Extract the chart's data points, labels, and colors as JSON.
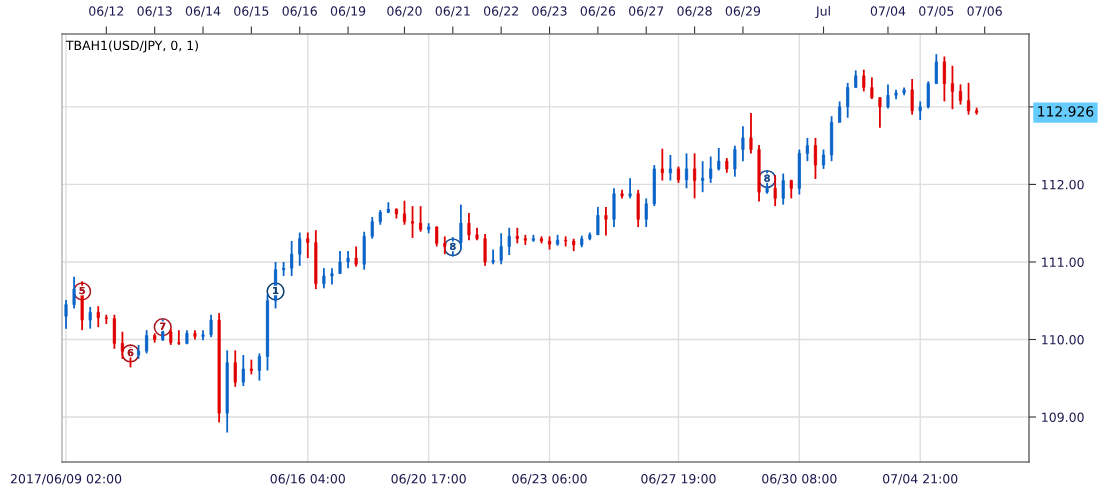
{
  "chart_data": [
    {
      "type": "other",
      "categories": [
        null,
        null,
        null,
        null,
        null,
        "06/12",
        null,
        null,
        null,
        null,
        null,
        "06/13",
        null,
        null,
        null,
        null,
        null,
        "06/14",
        null,
        null,
        null,
        null,
        null,
        "06/15",
        null,
        null,
        null,
        null,
        null,
        "06/16",
        null,
        null,
        null,
        null,
        null,
        "06/19",
        null,
        null,
        null,
        null,
        null,
        null,
        "06/20",
        null,
        null,
        null,
        null,
        null,
        "06/21",
        null,
        null,
        null,
        null,
        null,
        "06/22",
        null,
        null,
        null,
        null,
        null,
        "06/23",
        null,
        null,
        null,
        null,
        null,
        "06/26",
        null,
        null,
        null,
        null,
        null,
        "06/27",
        null,
        null,
        null,
        null,
        null,
        "06/28",
        null,
        null,
        null,
        null,
        null,
        "06/29",
        null,
        null,
        null,
        null,
        null,
        null,
        null,
        null,
        null,
        "Jul",
        null,
        null,
        null,
        null,
        null,
        null,
        null,
        "07/04",
        null,
        null,
        null,
        null,
        null,
        "07/05",
        null,
        null,
        null,
        null,
        null,
        "07/06",
        null,
        null,
        null,
        null,
        null
      ]
    },
    {
      "type": "candlestick",
      "title": "TBAH1(USD/JPY, 0, 1)",
      "categories": [
        "2017/06/09 02:00",
        null,
        null,
        null,
        null,
        null,
        null,
        null,
        null,
        null,
        null,
        null,
        null,
        null,
        null,
        null,
        null,
        null,
        null,
        null,
        null,
        null,
        null,
        null,
        null,
        null,
        null,
        null,
        null,
        null,
        "06/16 04:00",
        null,
        null,
        null,
        null,
        null,
        null,
        null,
        null,
        null,
        null,
        null,
        null,
        null,
        null,
        "06/20 17:00",
        null,
        null,
        null,
        null,
        null,
        null,
        null,
        null,
        null,
        null,
        null,
        null,
        null,
        null,
        "06/23 06:00",
        null,
        null,
        null,
        null,
        null,
        null,
        null,
        null,
        null,
        null,
        null,
        null,
        null,
        null,
        null,
        "06/27 19:00",
        null,
        null,
        null,
        null,
        null,
        null,
        null,
        null,
        null,
        null,
        null,
        null,
        null,
        null,
        "06/30 08:00",
        null,
        null,
        null,
        null,
        null,
        null,
        null,
        null,
        null,
        null,
        null,
        null,
        null,
        null,
        "07/04 21:00",
        null,
        null,
        null,
        null,
        null,
        null,
        null,
        null,
        null,
        null,
        null,
        null,
        null
      ],
      "ohlc": [
        [
          110.3,
          110.51,
          110.14,
          110.45
        ],
        [
          110.45,
          110.81,
          110.4,
          110.65
        ],
        [
          110.65,
          110.75,
          110.12,
          110.25
        ],
        [
          110.25,
          110.42,
          110.14,
          110.35
        ],
        [
          110.35,
          110.43,
          110.16,
          110.28
        ],
        [
          110.28,
          110.32,
          110.2,
          110.27
        ],
        [
          110.27,
          110.32,
          109.88,
          109.95
        ],
        [
          109.95,
          110.1,
          109.75,
          109.85
        ],
        [
          109.85,
          109.9,
          109.64,
          109.8
        ],
        [
          109.8,
          109.93,
          109.75,
          109.85
        ],
        [
          109.85,
          110.12,
          109.82,
          110.05
        ],
        [
          110.05,
          110.08,
          109.96,
          110.0
        ],
        [
          110.0,
          110.26,
          109.98,
          110.1
        ],
        [
          110.1,
          110.14,
          109.93,
          109.96
        ],
        [
          109.96,
          110.12,
          109.93,
          109.95
        ],
        [
          109.95,
          110.12,
          109.94,
          110.08
        ],
        [
          110.08,
          110.12,
          110.0,
          110.04
        ],
        [
          110.04,
          110.12,
          109.99,
          110.06
        ],
        [
          110.06,
          110.32,
          110.03,
          110.25
        ],
        [
          110.25,
          110.34,
          108.93,
          109.05
        ],
        [
          109.05,
          109.86,
          108.8,
          109.7
        ],
        [
          109.7,
          109.86,
          109.39,
          109.45
        ],
        [
          109.45,
          109.8,
          109.4,
          109.62
        ],
        [
          109.62,
          109.74,
          109.55,
          109.6
        ],
        [
          109.6,
          109.82,
          109.47,
          109.78
        ],
        [
          109.78,
          110.58,
          109.6,
          110.5
        ],
        [
          110.5,
          111.0,
          110.4,
          110.9
        ],
        [
          110.9,
          111.0,
          110.82,
          110.92
        ],
        [
          110.92,
          111.27,
          110.82,
          111.1
        ],
        [
          111.1,
          111.38,
          110.95,
          111.3
        ],
        [
          111.3,
          111.38,
          111.05,
          111.25
        ],
        [
          111.25,
          111.41,
          110.65,
          110.72
        ],
        [
          110.72,
          110.92,
          110.66,
          110.82
        ],
        [
          110.82,
          110.92,
          110.71,
          110.85
        ],
        [
          110.85,
          111.14,
          110.85,
          111.0
        ],
        [
          111.0,
          111.14,
          110.92,
          111.05
        ],
        [
          111.05,
          111.2,
          110.94,
          110.97
        ],
        [
          110.97,
          111.39,
          110.9,
          111.33
        ],
        [
          111.33,
          111.58,
          111.3,
          111.52
        ],
        [
          111.52,
          111.67,
          111.48,
          111.64
        ],
        [
          111.64,
          111.77,
          111.63,
          111.68
        ],
        [
          111.68,
          111.69,
          111.56,
          111.62
        ],
        [
          111.62,
          111.79,
          111.48,
          111.52
        ],
        [
          111.52,
          111.72,
          111.31,
          111.5
        ],
        [
          111.5,
          111.72,
          111.39,
          111.42
        ],
        [
          111.42,
          111.5,
          111.37,
          111.45
        ],
        [
          111.45,
          111.46,
          111.2,
          111.24
        ],
        [
          111.24,
          111.33,
          111.1,
          111.2
        ],
        [
          111.2,
          111.32,
          111.07,
          111.25
        ],
        [
          111.25,
          111.74,
          111.16,
          111.5
        ],
        [
          111.5,
          111.63,
          111.28,
          111.35
        ],
        [
          111.35,
          111.44,
          111.28,
          111.3
        ],
        [
          111.3,
          111.36,
          110.95,
          111.0
        ],
        [
          111.0,
          111.16,
          110.97,
          111.02
        ],
        [
          111.02,
          111.37,
          110.97,
          111.2
        ],
        [
          111.2,
          111.44,
          111.09,
          111.33
        ],
        [
          111.33,
          111.44,
          111.24,
          111.3
        ],
        [
          111.3,
          111.35,
          111.22,
          111.28
        ],
        [
          111.28,
          111.35,
          111.26,
          111.3
        ],
        [
          111.3,
          111.33,
          111.24,
          111.27
        ],
        [
          111.27,
          111.33,
          111.16,
          111.23
        ],
        [
          111.23,
          111.35,
          111.21,
          111.28
        ],
        [
          111.28,
          111.33,
          111.2,
          111.27
        ],
        [
          111.27,
          111.3,
          111.14,
          111.22
        ],
        [
          111.22,
          111.34,
          111.19,
          111.3
        ],
        [
          111.3,
          111.38,
          111.28,
          111.35
        ],
        [
          111.35,
          111.71,
          111.35,
          111.6
        ],
        [
          111.6,
          111.71,
          111.34,
          111.55
        ],
        [
          111.55,
          111.95,
          111.45,
          111.88
        ],
        [
          111.88,
          111.93,
          111.82,
          111.85
        ],
        [
          111.85,
          112.08,
          111.82,
          111.88
        ],
        [
          111.88,
          111.93,
          111.45,
          111.55
        ],
        [
          111.55,
          111.82,
          111.45,
          111.75
        ],
        [
          111.75,
          112.25,
          111.72,
          112.2
        ],
        [
          112.2,
          112.46,
          112.05,
          112.15
        ],
        [
          112.15,
          112.38,
          112.05,
          112.2
        ],
        [
          112.2,
          112.23,
          112.02,
          112.06
        ],
        [
          112.06,
          112.4,
          111.95,
          112.2
        ],
        [
          112.2,
          112.4,
          111.82,
          112.05
        ],
        [
          112.05,
          112.3,
          111.9,
          112.08
        ],
        [
          112.08,
          112.36,
          112.02,
          112.2
        ],
        [
          112.2,
          112.47,
          112.18,
          112.3
        ],
        [
          112.3,
          112.34,
          112.15,
          112.2
        ],
        [
          112.2,
          112.5,
          112.1,
          112.45
        ],
        [
          112.45,
          112.75,
          112.3,
          112.6
        ],
        [
          112.6,
          112.92,
          112.4,
          112.45
        ],
        [
          112.45,
          112.51,
          111.78,
          111.9
        ],
        [
          111.9,
          112.17,
          111.88,
          111.95
        ],
        [
          111.95,
          112.12,
          111.72,
          111.82
        ],
        [
          111.82,
          112.14,
          111.74,
          112.05
        ],
        [
          112.05,
          112.06,
          111.82,
          111.95
        ],
        [
          111.95,
          112.45,
          111.87,
          112.4
        ],
        [
          112.4,
          112.6,
          112.3,
          112.5
        ],
        [
          112.5,
          112.6,
          112.07,
          112.25
        ],
        [
          112.25,
          112.45,
          112.2,
          112.38
        ],
        [
          112.38,
          112.88,
          112.3,
          112.8
        ],
        [
          112.8,
          113.07,
          112.8,
          113.0
        ],
        [
          113.0,
          113.31,
          112.86,
          113.25
        ],
        [
          113.25,
          113.47,
          113.25,
          113.4
        ],
        [
          113.4,
          113.48,
          113.2,
          113.25
        ],
        [
          113.25,
          113.38,
          113.1,
          113.12
        ],
        [
          113.12,
          113.12,
          112.73,
          113.0
        ],
        [
          113.0,
          113.29,
          112.98,
          113.15
        ],
        [
          113.15,
          113.22,
          113.1,
          113.18
        ],
        [
          113.18,
          113.25,
          113.15,
          113.22
        ],
        [
          113.22,
          113.36,
          112.9,
          112.95
        ],
        [
          112.95,
          113.07,
          112.83,
          113.0
        ],
        [
          113.0,
          113.33,
          112.98,
          113.3
        ],
        [
          113.3,
          113.68,
          113.3,
          113.58
        ],
        [
          113.58,
          113.65,
          113.07,
          113.3
        ],
        [
          113.3,
          113.53,
          112.97,
          113.2
        ],
        [
          113.2,
          113.29,
          113.03,
          113.08
        ],
        [
          113.08,
          113.31,
          112.9,
          112.95
        ],
        [
          112.95,
          112.99,
          112.9,
          112.926
        ],
        null,
        null,
        null,
        null,
        null,
        null
      ],
      "colors": [
        "#0a64c8",
        "#0a64c8",
        "#e00000",
        "#0a64c8",
        "#e00000",
        "#e00000",
        "#e00000",
        "#e00000",
        "#e00000",
        "#0a64c8",
        "#0a64c8",
        "#e00000",
        "#0a64c8",
        "#e00000",
        "#e00000",
        "#0a64c8",
        "#e00000",
        "#0a64c8",
        "#0a64c8",
        "#e00000",
        "#0a64c8",
        "#e00000",
        "#0a64c8",
        "#e00000",
        "#0a64c8",
        "#0a64c8",
        "#0a64c8",
        "#0a64c8",
        "#0a64c8",
        "#0a64c8",
        "#e00000",
        "#e00000",
        "#0a64c8",
        "#0a64c8",
        "#0a64c8",
        "#0a64c8",
        "#e00000",
        "#0a64c8",
        "#0a64c8",
        "#0a64c8",
        "#0a64c8",
        "#e00000",
        "#e00000",
        "#e00000",
        "#e00000",
        "#0a64c8",
        "#e00000",
        "#e00000",
        "#0a64c8",
        "#0a64c8",
        "#e00000",
        "#e00000",
        "#e00000",
        "#0a64c8",
        "#0a64c8",
        "#0a64c8",
        "#e00000",
        "#e00000",
        "#0a64c8",
        "#e00000",
        "#e00000",
        "#0a64c8",
        "#e00000",
        "#e00000",
        "#0a64c8",
        "#0a64c8",
        "#0a64c8",
        "#e00000",
        "#0a64c8",
        "#e00000",
        "#0a64c8",
        "#e00000",
        "#0a64c8",
        "#0a64c8",
        "#e00000",
        "#0a64c8",
        "#e00000",
        "#0a64c8",
        "#e00000",
        "#0a64c8",
        "#0a64c8",
        "#0a64c8",
        "#e00000",
        "#0a64c8",
        "#0a64c8",
        "#e00000",
        "#e00000",
        "#0a64c8",
        "#e00000",
        "#0a64c8",
        "#e00000",
        "#0a64c8",
        "#0a64c8",
        "#e00000",
        "#0a64c8",
        "#0a64c8",
        "#0a64c8",
        "#0a64c8",
        "#0a64c8",
        "#e00000",
        "#e00000",
        "#e00000",
        "#0a64c8",
        "#0a64c8",
        "#0a64c8",
        "#e00000",
        "#0a64c8",
        "#0a64c8",
        "#0a64c8",
        "#e00000",
        "#e00000",
        "#e00000",
        "#e00000",
        "#e00000",
        null,
        null,
        null,
        null,
        null,
        null
      ],
      "series": [
        {
          "type": "scatter",
          "name": "5",
          "color": "#a8141c",
          "marker": "circle",
          "values": [
            null,
            null,
            110.62,
            null,
            null,
            null,
            null,
            null,
            null,
            null,
            null,
            null,
            null,
            null,
            null,
            null,
            null,
            null,
            null,
            null,
            null,
            null,
            null,
            null,
            null,
            null,
            null,
            null,
            null,
            null,
            null,
            null,
            null,
            null,
            null,
            null,
            null,
            null,
            null,
            null,
            null,
            null,
            null,
            null,
            null,
            null,
            null,
            null,
            null,
            null,
            null,
            null,
            null,
            null,
            null,
            null,
            null,
            null,
            null,
            null,
            null,
            null,
            null,
            null,
            null,
            null,
            null,
            null,
            null,
            null,
            null,
            null,
            null,
            null,
            null,
            null,
            null,
            null,
            null,
            null,
            null,
            null,
            null,
            null,
            null,
            null,
            null,
            null,
            null,
            null,
            null,
            null,
            null,
            null,
            null,
            null,
            null,
            null,
            null,
            null,
            null,
            null,
            null,
            null,
            null,
            null,
            null,
            null,
            null,
            null,
            null,
            null,
            null,
            null,
            null,
            null,
            null,
            null,
            null,
            null
          ]
        },
        {
          "type": "scatter",
          "name": "6",
          "color": "#a8141c",
          "marker": "circle",
          "values": [
            null,
            null,
            null,
            null,
            null,
            null,
            null,
            null,
            109.82,
            null,
            null,
            null,
            null,
            null,
            null,
            null,
            null,
            null,
            null,
            null,
            null,
            null,
            null,
            null,
            null,
            null,
            null,
            null,
            null,
            null,
            null,
            null,
            null,
            null,
            null,
            null,
            null,
            null,
            null,
            null,
            null,
            null,
            null,
            null,
            null,
            null,
            null,
            null,
            null,
            null,
            null,
            null,
            null,
            null,
            null,
            null,
            null,
            null,
            null,
            null,
            null,
            null,
            null,
            null,
            null,
            null,
            null,
            null,
            null,
            null,
            null,
            null,
            null,
            null,
            null,
            null,
            null,
            null,
            null,
            null,
            null,
            null,
            null,
            null,
            null,
            null,
            null,
            null,
            null,
            null,
            null,
            null,
            null,
            null,
            null,
            null,
            null,
            null,
            null,
            null,
            null,
            null,
            null,
            null,
            null,
            null,
            null,
            null,
            null,
            null,
            null,
            null,
            null,
            null,
            null,
            null,
            null,
            null,
            null,
            null
          ]
        },
        {
          "type": "scatter",
          "name": "7",
          "color": "#a8141c",
          "marker": "circle",
          "values": [
            null,
            null,
            null,
            null,
            null,
            null,
            null,
            null,
            null,
            null,
            null,
            null,
            110.16,
            null,
            null,
            null,
            null,
            null,
            null,
            null,
            null,
            null,
            null,
            null,
            null,
            null,
            null,
            null,
            null,
            null,
            null,
            null,
            null,
            null,
            null,
            null,
            null,
            null,
            null,
            null,
            null,
            null,
            null,
            null,
            null,
            null,
            null,
            null,
            null,
            null,
            null,
            null,
            null,
            null,
            null,
            null,
            null,
            null,
            null,
            null,
            null,
            null,
            null,
            null,
            null,
            null,
            null,
            null,
            null,
            null,
            null,
            null,
            null,
            null,
            null,
            null,
            null,
            null,
            null,
            null,
            null,
            null,
            null,
            null,
            null,
            null,
            null,
            null,
            null,
            null,
            null,
            null,
            null,
            null,
            null,
            null,
            null,
            null,
            null,
            null,
            null,
            null,
            null,
            null,
            null,
            null,
            null,
            null,
            null,
            null,
            null,
            null,
            null,
            null,
            null,
            null,
            null,
            null,
            null,
            null
          ]
        },
        {
          "type": "scatter",
          "name": "1",
          "color": "#0b3d6e",
          "marker": "circle",
          "values": [
            null,
            null,
            null,
            null,
            null,
            null,
            null,
            null,
            null,
            null,
            null,
            null,
            null,
            null,
            null,
            null,
            null,
            null,
            null,
            null,
            null,
            null,
            null,
            null,
            null,
            null,
            110.62,
            null,
            null,
            null,
            null,
            null,
            null,
            null,
            null,
            null,
            null,
            null,
            null,
            null,
            null,
            null,
            null,
            null,
            null,
            null,
            null,
            null,
            null,
            null,
            null,
            null,
            null,
            null,
            null,
            null,
            null,
            null,
            null,
            null,
            null,
            null,
            null,
            null,
            null,
            null,
            null,
            null,
            null,
            null,
            null,
            null,
            null,
            null,
            null,
            null,
            null,
            null,
            null,
            null,
            null,
            null,
            null,
            null,
            null,
            null,
            null,
            null,
            null,
            null,
            null,
            null,
            null,
            null,
            null,
            null,
            null,
            null,
            null,
            null,
            null,
            null,
            null,
            null,
            null,
            null,
            null,
            null,
            null,
            null,
            null,
            null,
            null,
            null,
            null,
            null,
            null,
            null,
            null,
            null
          ]
        },
        {
          "type": "scatter",
          "name": "8",
          "color": "#1f4f8f",
          "marker": "circle",
          "values": [
            null,
            null,
            null,
            null,
            null,
            null,
            null,
            null,
            null,
            null,
            null,
            null,
            null,
            null,
            null,
            null,
            null,
            null,
            null,
            null,
            null,
            null,
            null,
            null,
            null,
            null,
            null,
            null,
            null,
            null,
            null,
            null,
            null,
            null,
            null,
            null,
            null,
            null,
            null,
            null,
            null,
            null,
            null,
            null,
            null,
            null,
            null,
            null,
            111.19,
            null,
            null,
            null,
            null,
            null,
            null,
            null,
            null,
            null,
            null,
            null,
            null,
            null,
            null,
            null,
            null,
            null,
            null,
            null,
            null,
            null,
            null,
            null,
            null,
            null,
            null,
            null,
            null,
            null,
            null,
            null,
            null,
            null,
            null,
            null,
            null,
            null,
            null,
            null,
            null,
            null,
            null,
            null,
            null,
            null,
            null,
            null,
            null,
            null,
            null,
            null,
            null,
            null,
            null,
            null,
            null,
            null,
            null,
            null,
            null,
            null,
            null,
            null,
            null,
            null,
            null,
            null,
            null,
            null,
            null,
            null
          ]
        },
        {
          "type": "scatter",
          "name": "8",
          "color": "#1f4f8f",
          "marker": "circle",
          "values": [
            null,
            null,
            null,
            null,
            null,
            null,
            null,
            null,
            null,
            null,
            null,
            null,
            null,
            null,
            null,
            null,
            null,
            null,
            null,
            null,
            null,
            null,
            null,
            null,
            null,
            null,
            null,
            null,
            null,
            null,
            null,
            null,
            null,
            null,
            null,
            null,
            null,
            null,
            null,
            null,
            null,
            null,
            null,
            null,
            null,
            null,
            null,
            null,
            null,
            null,
            null,
            null,
            null,
            null,
            null,
            null,
            null,
            null,
            null,
            null,
            null,
            null,
            null,
            null,
            null,
            null,
            null,
            null,
            null,
            null,
            null,
            null,
            null,
            null,
            null,
            null,
            null,
            null,
            null,
            null,
            null,
            null,
            null,
            null,
            null,
            null,
            null,
            112.07,
            null,
            null,
            null,
            null,
            null,
            null,
            null,
            null,
            null,
            null,
            null,
            null,
            null,
            null,
            null,
            null,
            null,
            null,
            null,
            null,
            null,
            null,
            null,
            null,
            null,
            null,
            null,
            null,
            null,
            null,
            null,
            null
          ]
        }
      ],
      "ylim": [
        108.42,
        113.94
      ],
      "yticks": [
        {
          "value": 109,
          "label": "109.00"
        },
        {
          "value": 110,
          "label": "110.00"
        },
        {
          "value": 111,
          "label": "111.00"
        },
        {
          "value": 112,
          "label": "112.00"
        },
        {
          "value": 113,
          "label": null
        }
      ],
      "grid": true,
      "annotations": [
        "112.926"
      ]
    }
  ]
}
